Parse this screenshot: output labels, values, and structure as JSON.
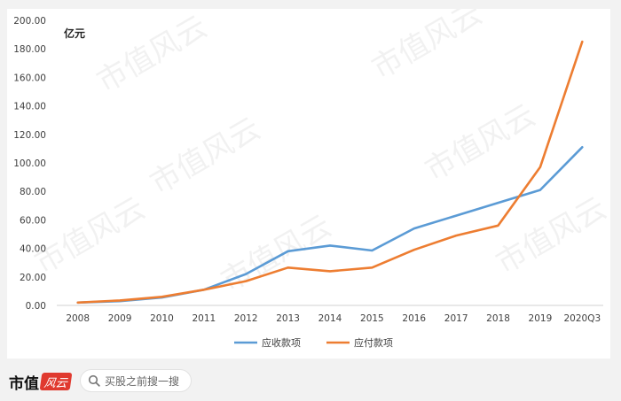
{
  "chart_data": {
    "type": "line",
    "unit_label": "亿元",
    "categories": [
      "2008",
      "2009",
      "2010",
      "2011",
      "2012",
      "2013",
      "2014",
      "2015",
      "2016",
      "2017",
      "2018",
      "2019",
      "2020Q3"
    ],
    "ylim": [
      0,
      200
    ],
    "yticks": [
      "0.00",
      "20.00",
      "40.00",
      "60.00",
      "80.00",
      "100.00",
      "120.00",
      "140.00",
      "160.00",
      "180.00",
      "200.00"
    ],
    "grid": false,
    "legend_position": "bottom",
    "series": [
      {
        "name": "应收款项",
        "color": "#5b9bd5",
        "values": [
          2,
          3,
          5.5,
          11,
          22,
          38,
          42,
          38.5,
          54,
          63,
          72,
          81,
          111
        ]
      },
      {
        "name": "应付款项",
        "color": "#ed7d31",
        "values": [
          2,
          3.5,
          6,
          11,
          17,
          26.5,
          24,
          26.5,
          39,
          49,
          56,
          97,
          185
        ]
      }
    ]
  },
  "watermark": "市值风云",
  "footer": {
    "brand": "市值",
    "brand_logo": "风云",
    "search_placeholder": "买股之前搜一搜",
    "search_icon": "search-icon"
  }
}
